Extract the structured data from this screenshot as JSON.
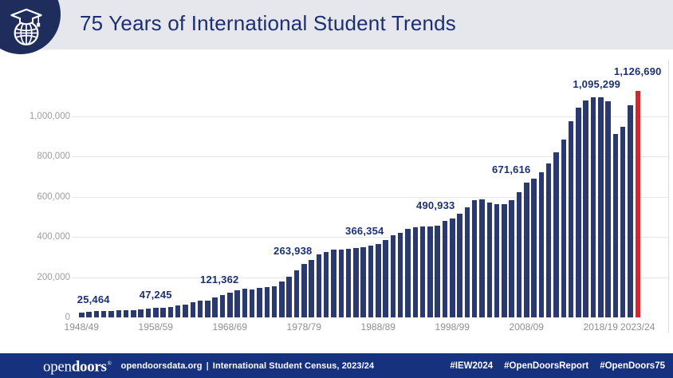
{
  "header": {
    "title": "75 Years of International Student Trends"
  },
  "chart_data": {
    "type": "bar",
    "title": "75 Years of International Student Trends",
    "ylabel": "",
    "xlabel": "",
    "grid": true,
    "legend": false,
    "ylim": [
      0,
      1200000
    ],
    "bar_color": "#2b3a6e",
    "highlight_bar_color": "#d6252b",
    "highlight_bar_index": 75,
    "y_ticks": [
      0,
      200000,
      400000,
      600000,
      800000,
      1000000
    ],
    "y_tick_labels": [
      "0",
      "200,000",
      "400,000",
      "600,000",
      "800,000",
      "1,000,000"
    ],
    "x_tick_indices": [
      0,
      10,
      20,
      30,
      40,
      50,
      60,
      70,
      75
    ],
    "x_tick_labels": [
      "1948/49",
      "1958/59",
      "1968/69",
      "1978/79",
      "1988/89",
      "1998/99",
      "2008/09",
      "2018/19",
      "2023/24"
    ],
    "categories": [
      "1948/49",
      "1949/50",
      "1950/51",
      "1951/52",
      "1952/53",
      "1953/54",
      "1954/55",
      "1955/56",
      "1956/57",
      "1957/58",
      "1958/59",
      "1959/60",
      "1960/61",
      "1961/62",
      "1962/63",
      "1963/64",
      "1964/65",
      "1965/66",
      "1966/67",
      "1967/68",
      "1968/69",
      "1969/70",
      "1970/71",
      "1971/72",
      "1972/73",
      "1973/74",
      "1974/75",
      "1975/76",
      "1976/77",
      "1977/78",
      "1978/79",
      "1979/80",
      "1980/81",
      "1981/82",
      "1982/83",
      "1983/84",
      "1984/85",
      "1985/86",
      "1986/87",
      "1987/88",
      "1988/89",
      "1989/90",
      "1990/91",
      "1991/92",
      "1992/93",
      "1993/94",
      "1994/95",
      "1995/96",
      "1996/97",
      "1997/98",
      "1998/99",
      "1999/00",
      "2000/01",
      "2001/02",
      "2002/03",
      "2003/04",
      "2004/05",
      "2005/06",
      "2006/07",
      "2007/08",
      "2008/09",
      "2009/10",
      "2010/11",
      "2011/12",
      "2012/13",
      "2013/14",
      "2014/15",
      "2015/16",
      "2016/17",
      "2017/18",
      "2018/19",
      "2019/20",
      "2020/21",
      "2021/22",
      "2022/23",
      "2023/24"
    ],
    "values": [
      25464,
      26433,
      29813,
      30462,
      33675,
      33833,
      34232,
      36494,
      40666,
      43391,
      47245,
      48486,
      53107,
      58086,
      64705,
      74814,
      82045,
      82709,
      100262,
      110315,
      121362,
      134959,
      144708,
      140126,
      146097,
      151066,
      154580,
      179344,
      203068,
      235509,
      263938,
      286343,
      311882,
      326299,
      336985,
      338894,
      342113,
      343777,
      349609,
      356187,
      366354,
      386851,
      407529,
      419585,
      438618,
      449749,
      452635,
      453787,
      457984,
      481280,
      490933,
      514723,
      547867,
      582996,
      586323,
      572509,
      565039,
      564766,
      582984,
      623805,
      671616,
      690923,
      723277,
      764495,
      819644,
      886052,
      974926,
      1043839,
      1078822,
      1094792,
      1095299,
      1075496,
      914095,
      948519,
      1057188,
      1126690
    ],
    "annotations": [
      {
        "bar_index": 0,
        "label": "25,464"
      },
      {
        "bar_index": 10,
        "label": "47,245"
      },
      {
        "bar_index": 20,
        "label": "121,362"
      },
      {
        "bar_index": 30,
        "label": "263,938"
      },
      {
        "bar_index": 40,
        "label": "366,354"
      },
      {
        "bar_index": 50,
        "label": "490,933"
      },
      {
        "bar_index": 60,
        "label": "671,616"
      },
      {
        "bar_index": 70,
        "label": "1,095,299"
      },
      {
        "bar_index": 75,
        "label": "1,126,690"
      }
    ]
  },
  "footer": {
    "logo_open": "open",
    "logo_doors": "doors",
    "logo_mark": "®",
    "source_site": "opendoorsdata.org",
    "source_sep": "|",
    "source_census": "International Student Census, 2023/24",
    "hashtags": [
      "#IEW2024",
      "#OpenDoorsReport",
      "#OpenDoors75"
    ]
  }
}
